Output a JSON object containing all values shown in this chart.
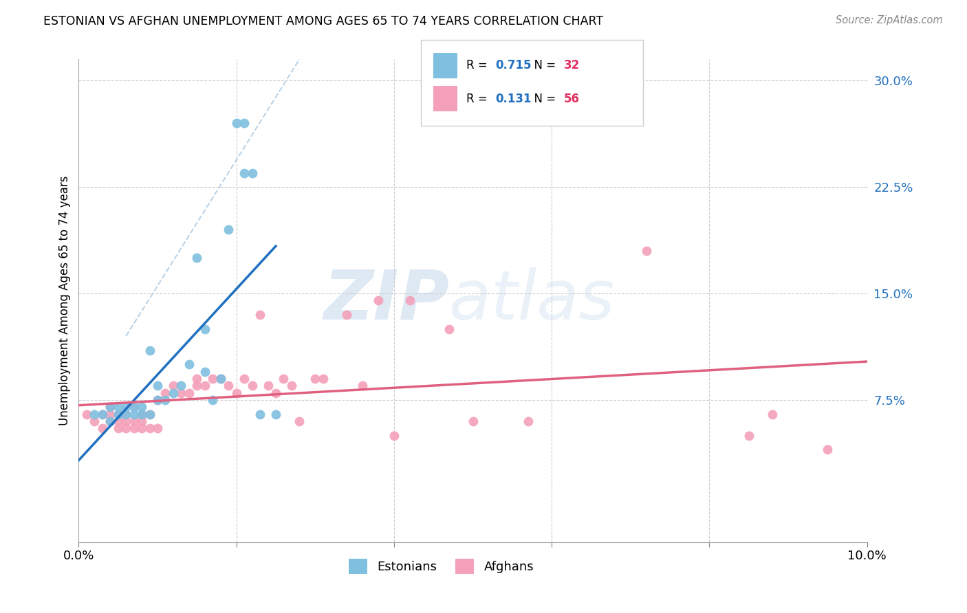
{
  "title": "ESTONIAN VS AFGHAN UNEMPLOYMENT AMONG AGES 65 TO 74 YEARS CORRELATION CHART",
  "source": "Source: ZipAtlas.com",
  "ylabel": "Unemployment Among Ages 65 to 74 years",
  "xlim": [
    0.0,
    0.1
  ],
  "ylim": [
    -0.025,
    0.315
  ],
  "xtick_positions": [
    0.0,
    0.02,
    0.04,
    0.06,
    0.08,
    0.1
  ],
  "xtick_labels": [
    "0.0%",
    "",
    "",
    "",
    "",
    "10.0%"
  ],
  "ytick_positions": [
    0.0,
    0.075,
    0.15,
    0.225,
    0.3
  ],
  "ytick_labels": [
    "",
    "7.5%",
    "15.0%",
    "22.5%",
    "30.0%"
  ],
  "estonian_color": "#7fbfdf",
  "afghan_color": "#f4a0b8",
  "estonian_line_color": "#2070c0",
  "afghan_line_color": "#e06080",
  "diagonal_color": "#aac8e0",
  "legend_R_color": "#2070c0",
  "legend_N_color": "#e03060",
  "R_estonian": "0.715",
  "N_estonian": "32",
  "R_afghan": "0.131",
  "N_afghan": "56",
  "watermark_zip": "ZIP",
  "watermark_atlas": "atlas",
  "estonian_x": [
    0.002,
    0.003,
    0.004,
    0.004,
    0.005,
    0.005,
    0.006,
    0.006,
    0.007,
    0.007,
    0.008,
    0.008,
    0.009,
    0.009,
    0.01,
    0.01,
    0.011,
    0.012,
    0.013,
    0.014,
    0.015,
    0.016,
    0.016,
    0.017,
    0.018,
    0.019,
    0.02,
    0.021,
    0.021,
    0.022,
    0.023,
    0.025
  ],
  "estonian_y": [
    0.065,
    0.065,
    0.06,
    0.07,
    0.065,
    0.07,
    0.065,
    0.07,
    0.065,
    0.07,
    0.065,
    0.07,
    0.065,
    0.11,
    0.075,
    0.085,
    0.075,
    0.08,
    0.085,
    0.1,
    0.175,
    0.095,
    0.125,
    0.075,
    0.09,
    0.195,
    0.27,
    0.27,
    0.235,
    0.235,
    0.065,
    0.065
  ],
  "afghan_x": [
    0.001,
    0.002,
    0.003,
    0.003,
    0.004,
    0.004,
    0.004,
    0.005,
    0.005,
    0.005,
    0.006,
    0.006,
    0.006,
    0.007,
    0.007,
    0.007,
    0.008,
    0.008,
    0.008,
    0.009,
    0.009,
    0.01,
    0.01,
    0.011,
    0.012,
    0.013,
    0.014,
    0.015,
    0.015,
    0.016,
    0.017,
    0.018,
    0.019,
    0.02,
    0.021,
    0.022,
    0.023,
    0.024,
    0.025,
    0.026,
    0.027,
    0.028,
    0.03,
    0.031,
    0.034,
    0.036,
    0.038,
    0.04,
    0.042,
    0.047,
    0.05,
    0.057,
    0.072,
    0.085,
    0.088,
    0.095
  ],
  "afghan_y": [
    0.065,
    0.06,
    0.065,
    0.055,
    0.06,
    0.065,
    0.07,
    0.055,
    0.06,
    0.065,
    0.055,
    0.06,
    0.065,
    0.055,
    0.06,
    0.07,
    0.055,
    0.06,
    0.065,
    0.055,
    0.065,
    0.055,
    0.075,
    0.08,
    0.085,
    0.08,
    0.08,
    0.085,
    0.09,
    0.085,
    0.09,
    0.09,
    0.085,
    0.08,
    0.09,
    0.085,
    0.135,
    0.085,
    0.08,
    0.09,
    0.085,
    0.06,
    0.09,
    0.09,
    0.135,
    0.085,
    0.145,
    0.05,
    0.145,
    0.125,
    0.06,
    0.06,
    0.18,
    0.05,
    0.065,
    0.04
  ]
}
